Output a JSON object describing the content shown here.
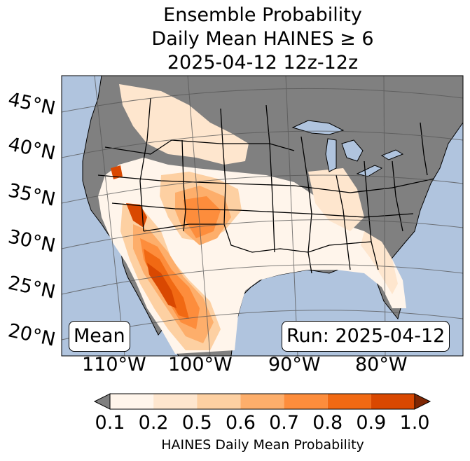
{
  "title": {
    "line1": "Ensemble Probability",
    "line2": "Daily Mean HAINES ≥ 6",
    "line3": "2025-04-12 12z-12z"
  },
  "map": {
    "lat_labels": [
      "45°N",
      "40°N",
      "35°N",
      "30°N",
      "25°N",
      "20°N"
    ],
    "lon_labels": [
      "110°W",
      "100°W",
      "90°W",
      "80°W"
    ],
    "stat_label": "Mean",
    "run_label": "Run: 2025-04-12",
    "colors": {
      "ocean": "#b0c4de",
      "land": "#808080"
    }
  },
  "colorbar": {
    "label": "HAINES Daily Mean Probability",
    "ticks": [
      "0.1",
      "0.2",
      "0.5",
      "0.6",
      "0.7",
      "0.8",
      "0.9",
      "1.0"
    ],
    "colors": [
      "#fff5eb",
      "#fee6ce",
      "#fdd0a2",
      "#fdae6b",
      "#fd8d3c",
      "#f16913",
      "#d94801"
    ],
    "under_color": "#808080",
    "over_color": "#7f2704"
  }
}
